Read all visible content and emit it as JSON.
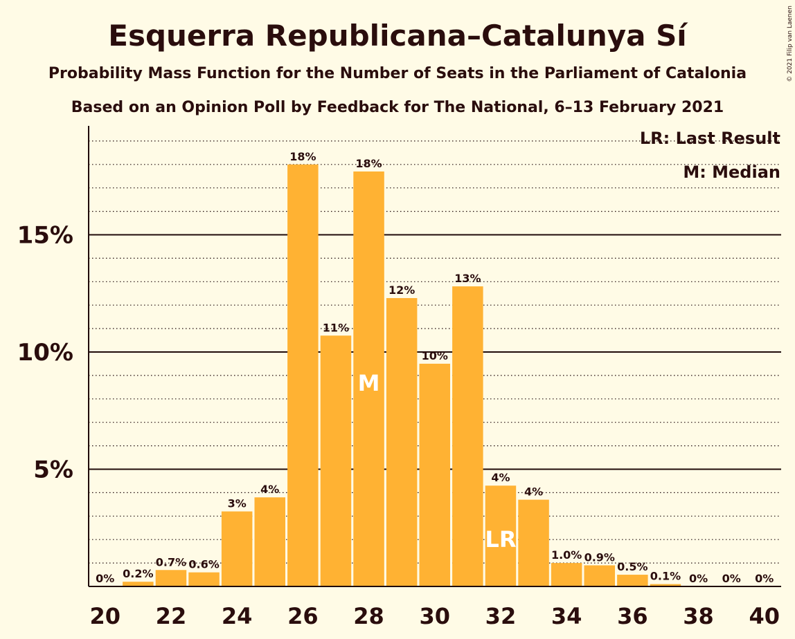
{
  "chart_data": {
    "type": "bar",
    "title": "Esquerra Republicana–Catalunya Sí",
    "subtitle": "Probability Mass Function for the Number of Seats in the Parliament of Catalonia",
    "subtitle2": "Based on an Opinion Poll by Feedback for The National, 6–13 February 2021",
    "copyright": "© 2021 Filip van Laenen",
    "legend": [
      "LR: Last Result",
      "M: Median"
    ],
    "x": [
      20,
      21,
      22,
      23,
      24,
      25,
      26,
      27,
      28,
      29,
      30,
      31,
      32,
      33,
      34,
      35,
      36,
      37,
      38,
      39,
      40
    ],
    "values": [
      0,
      0.2,
      0.7,
      0.6,
      3.2,
      3.8,
      18.0,
      10.7,
      17.7,
      12.3,
      9.5,
      12.8,
      4.3,
      3.7,
      1.0,
      0.9,
      0.5,
      0.1,
      0,
      0,
      0
    ],
    "labels": [
      "0%",
      "0.2%",
      "0.7%",
      "0.6%",
      "3%",
      "4%",
      "18%",
      "11%",
      "18%",
      "12%",
      "10%",
      "13%",
      "4%",
      "4%",
      "1.0%",
      "0.9%",
      "0.5%",
      "0.1%",
      "0%",
      "0%",
      "0%"
    ],
    "x_tick_labels": [
      "20",
      "22",
      "24",
      "26",
      "28",
      "30",
      "32",
      "34",
      "36",
      "38",
      "40"
    ],
    "y_ticks": [
      5,
      10,
      15
    ],
    "y_tick_labels": [
      "5%",
      "10%",
      "15%"
    ],
    "ylim": [
      0,
      19.5
    ],
    "median": 28,
    "median_marker": "M",
    "last_result": 32,
    "last_result_marker": "LR",
    "bar_color": "#ffb233",
    "grid": true,
    "legend_position": "top-right"
  }
}
